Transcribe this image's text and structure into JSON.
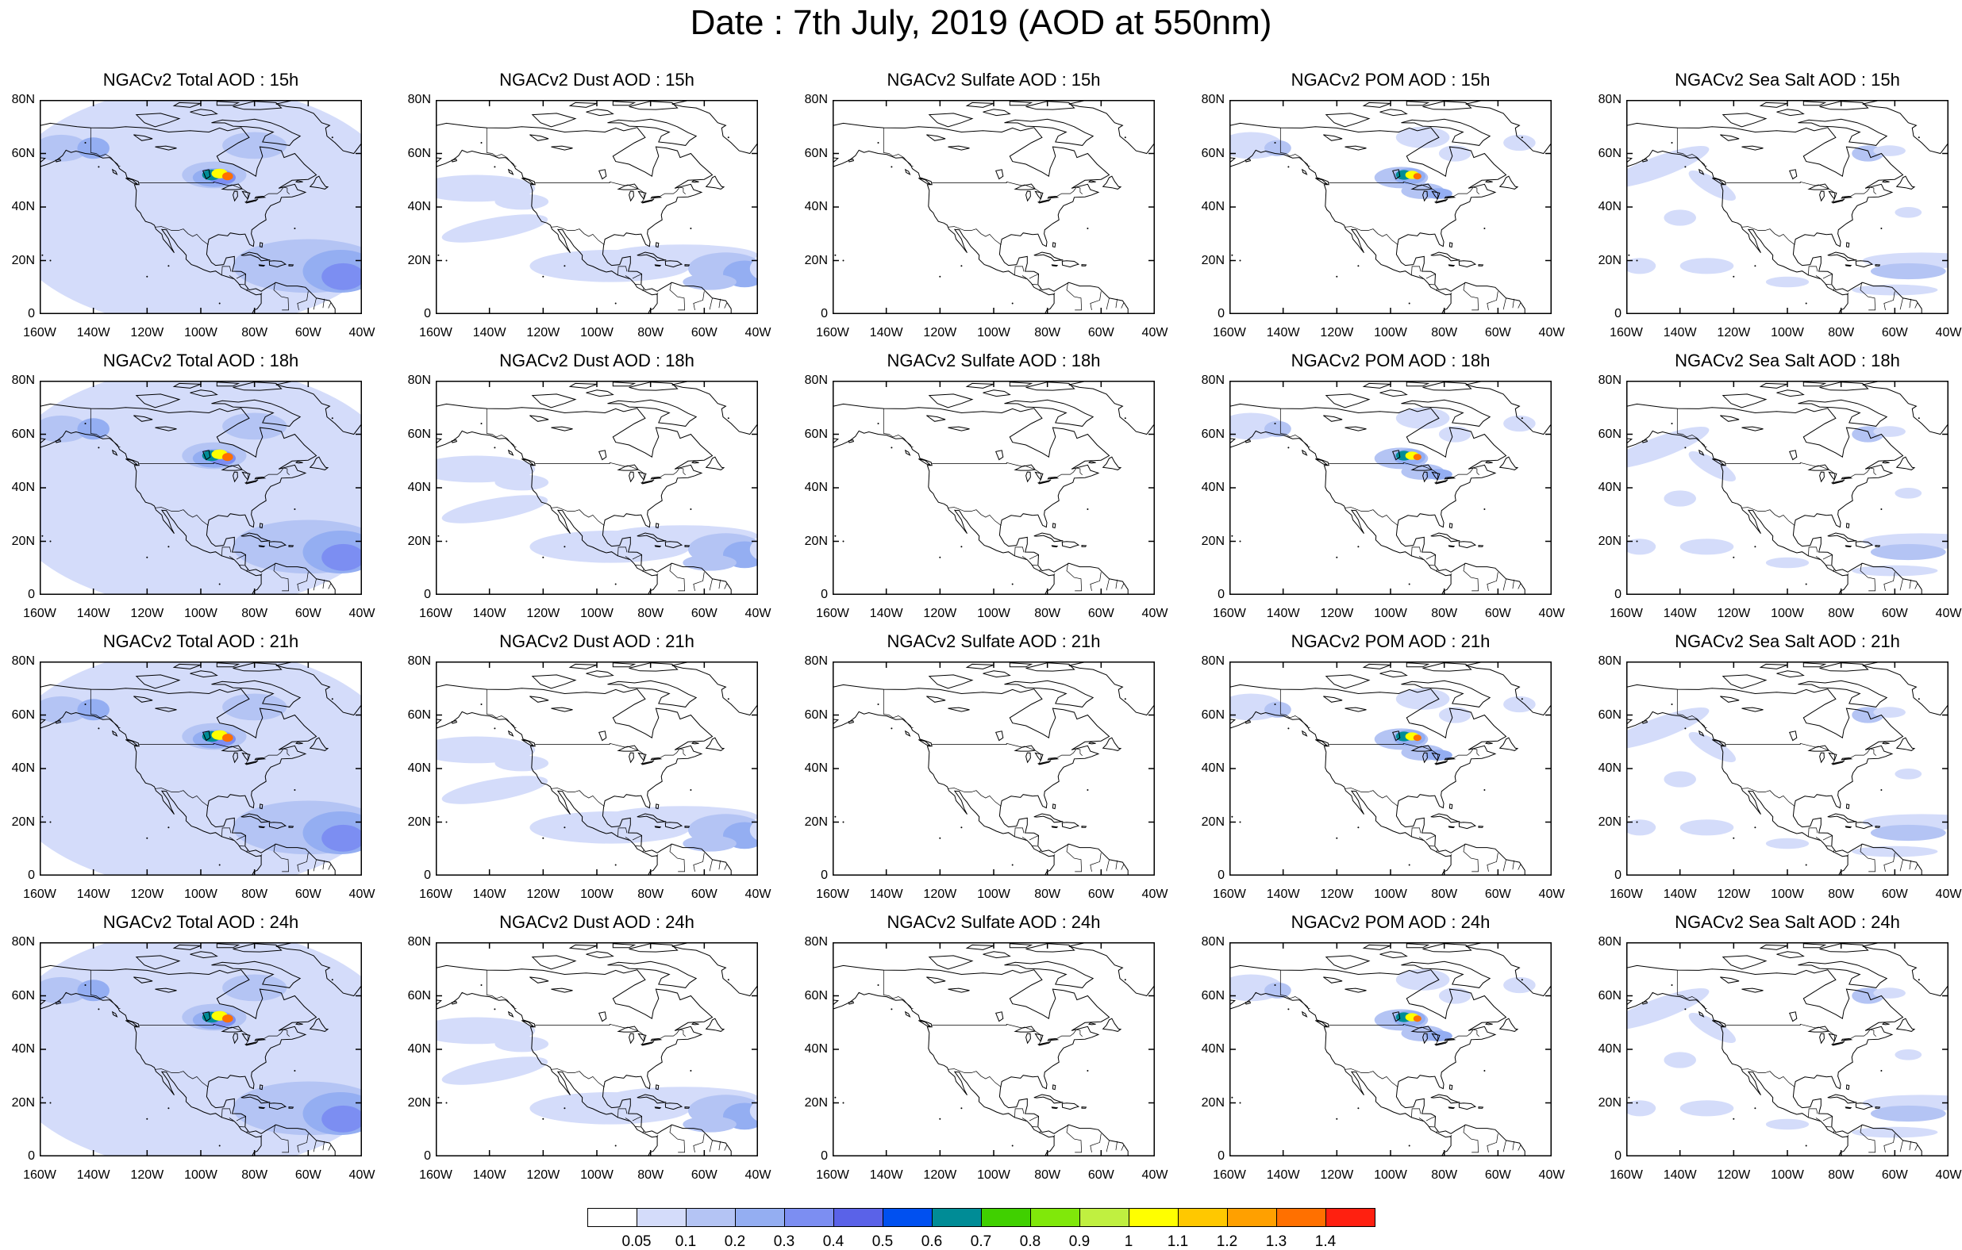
{
  "title": "Date : 7th July, 2019 (AOD at 550nm)",
  "panel_titles": [
    [
      "NGACv2 Total AOD : 15h",
      "NGACv2 Dust AOD : 15h",
      "NGACv2 Sulfate AOD : 15h",
      "NGACv2 POM AOD : 15h",
      "NGACv2 Sea Salt AOD : 15h"
    ],
    [
      "NGACv2 Total AOD : 18h",
      "NGACv2 Dust AOD : 18h",
      "NGACv2 Sulfate AOD : 18h",
      "NGACv2 POM AOD : 18h",
      "NGACv2 Sea Salt AOD : 18h"
    ],
    [
      "NGACv2 Total AOD : 21h",
      "NGACv2 Dust AOD : 21h",
      "NGACv2 Sulfate AOD : 21h",
      "NGACv2 POM AOD : 21h",
      "NGACv2 Sea Salt AOD : 21h"
    ],
    [
      "NGACv2 Total AOD : 24h",
      "NGACv2 Dust AOD : 24h",
      "NGACv2 Sulfate AOD : 24h",
      "NGACv2 POM AOD : 24h",
      "NGACv2 Sea Salt  AOD : 24h"
    ]
  ],
  "lat_ticks": [
    "80N",
    "60N",
    "40N",
    "20N",
    "0"
  ],
  "lon_ticks": [
    "160W",
    "140W",
    "120W",
    "100W",
    "80W",
    "60W",
    "40W"
  ],
  "extent": {
    "lon": [
      -160,
      -40
    ],
    "lat": [
      0,
      80
    ]
  },
  "colorbar": {
    "colors": [
      "#ffffff",
      "#d4dcfa",
      "#b4c4f4",
      "#94aef2",
      "#7c8ef2",
      "#5a62e8",
      "#0050f0",
      "#008c96",
      "#40d000",
      "#80e80a",
      "#c0f040",
      "#ffff00",
      "#ffc800",
      "#ffa000",
      "#ff7000",
      "#ff2010"
    ],
    "labels": [
      "0.05",
      "0.1",
      "0.2",
      "0.3",
      "0.4",
      "0.5",
      "0.6",
      "0.7",
      "0.8",
      "0.9",
      "1",
      "1.1",
      "1.2",
      "1.3",
      "1.4"
    ]
  }
}
